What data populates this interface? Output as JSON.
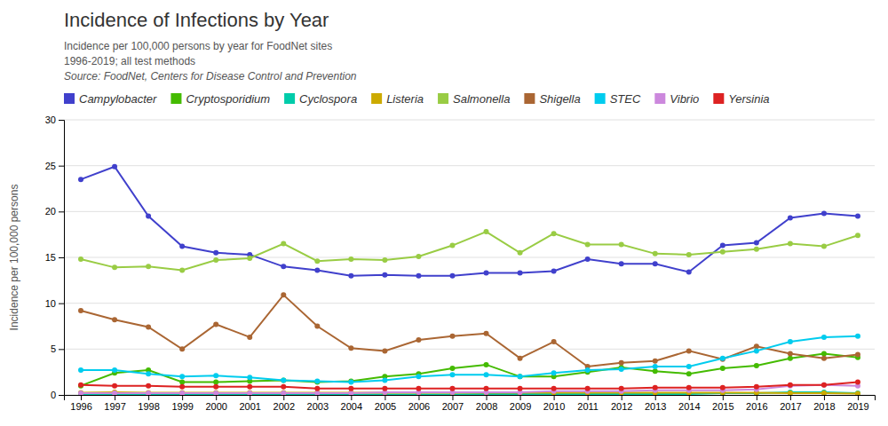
{
  "chart_data": {
    "type": "line",
    "title": "Incidence of Infections by Year",
    "subtitle": [
      "Incidence per 100,000 persons by year for FoodNet sites",
      "1996-2019; all test methods",
      "Source: FoodNet, Centers for Disease Control and Prevention"
    ],
    "ylabel": "Incidence per 100,000 persons",
    "x": [
      1996,
      1997,
      1998,
      1999,
      2000,
      2001,
      2002,
      2003,
      2004,
      2005,
      2006,
      2007,
      2008,
      2009,
      2010,
      2011,
      2012,
      2013,
      2014,
      2015,
      2016,
      2017,
      2018,
      2019
    ],
    "xlim": [
      1995.5,
      2019.5
    ],
    "xticks": [
      1996,
      1997,
      1998,
      1999,
      2000,
      2001,
      2002,
      2003,
      2004,
      2005,
      2006,
      2007,
      2008,
      2009,
      2010,
      2011,
      2012,
      2013,
      2014,
      2015,
      2016,
      2017,
      2018,
      2019
    ],
    "ylim": [
      0,
      30
    ],
    "yticks": [
      0,
      5,
      10,
      15,
      20,
      25,
      30
    ],
    "grid": true,
    "legend": "top-left",
    "marker": "circle",
    "line_style": "solid",
    "series": [
      {
        "name": "Campylobacter",
        "color": "#4040cc",
        "values": [
          23.5,
          24.9,
          19.5,
          16.2,
          15.5,
          15.3,
          14.0,
          13.6,
          13.0,
          13.1,
          13.0,
          13.0,
          13.3,
          13.3,
          13.5,
          14.8,
          14.3,
          14.3,
          13.4,
          16.3,
          16.6,
          19.3,
          19.8,
          19.5
        ]
      },
      {
        "name": "Cryptosporidium",
        "color": "#44bb00",
        "values": [
          1.0,
          2.4,
          2.7,
          1.4,
          1.4,
          1.5,
          1.6,
          1.4,
          1.5,
          2.0,
          2.3,
          2.9,
          3.3,
          2.0,
          2.0,
          2.5,
          3.0,
          2.6,
          2.3,
          2.9,
          3.2,
          4.0,
          4.5,
          4.1
        ]
      },
      {
        "name": "Cyclospora",
        "color": "#00ccaa",
        "values": [
          0.1,
          0.1,
          0.1,
          0.1,
          0.05,
          0.05,
          0.05,
          0.05,
          0.05,
          0.05,
          0.05,
          0.05,
          0.1,
          0.1,
          0.1,
          0.1,
          0.1,
          0.1,
          0.1,
          0.2,
          0.2,
          0.3,
          0.3,
          0.2
        ]
      },
      {
        "name": "Listeria",
        "color": "#ccaa00",
        "values": [
          0.25,
          0.3,
          0.25,
          0.25,
          0.25,
          0.25,
          0.25,
          0.25,
          0.25,
          0.25,
          0.25,
          0.25,
          0.25,
          0.25,
          0.25,
          0.25,
          0.25,
          0.25,
          0.25,
          0.25,
          0.25,
          0.2,
          0.2,
          0.15
        ]
      },
      {
        "name": "Salmonella",
        "color": "#99cc44",
        "values": [
          14.8,
          13.9,
          14.0,
          13.6,
          14.7,
          14.9,
          16.5,
          14.6,
          14.8,
          14.7,
          15.1,
          16.3,
          17.8,
          15.5,
          17.6,
          16.4,
          16.4,
          15.4,
          15.3,
          15.6,
          15.9,
          16.5,
          16.2,
          17.4
        ]
      },
      {
        "name": "Shigella",
        "color": "#aa6633",
        "values": [
          9.2,
          8.2,
          7.4,
          5.0,
          7.7,
          6.3,
          10.9,
          7.5,
          5.1,
          4.8,
          6.0,
          6.4,
          6.7,
          4.0,
          5.8,
          3.1,
          3.5,
          3.7,
          4.8,
          3.9,
          5.3,
          4.5,
          4.0,
          4.4
        ]
      },
      {
        "name": "STEC",
        "color": "#00ccee",
        "values": [
          2.7,
          2.7,
          2.3,
          2.0,
          2.1,
          1.9,
          1.6,
          1.5,
          1.4,
          1.6,
          2.0,
          2.2,
          2.2,
          2.0,
          2.4,
          2.7,
          2.8,
          3.1,
          3.1,
          4.0,
          4.8,
          5.8,
          6.3,
          6.4
        ]
      },
      {
        "name": "Vibrio",
        "color": "#cc88dd",
        "values": [
          0.2,
          0.2,
          0.2,
          0.2,
          0.2,
          0.2,
          0.2,
          0.2,
          0.2,
          0.3,
          0.3,
          0.3,
          0.3,
          0.3,
          0.4,
          0.4,
          0.4,
          0.5,
          0.5,
          0.5,
          0.6,
          1.0,
          1.1,
          1.0
        ]
      },
      {
        "name": "Yersinia",
        "color": "#dd2222",
        "values": [
          1.1,
          1.0,
          1.0,
          0.9,
          0.9,
          0.9,
          0.9,
          0.7,
          0.7,
          0.7,
          0.7,
          0.7,
          0.7,
          0.7,
          0.7,
          0.7,
          0.7,
          0.8,
          0.8,
          0.8,
          0.9,
          1.1,
          1.1,
          1.4
        ]
      }
    ]
  }
}
